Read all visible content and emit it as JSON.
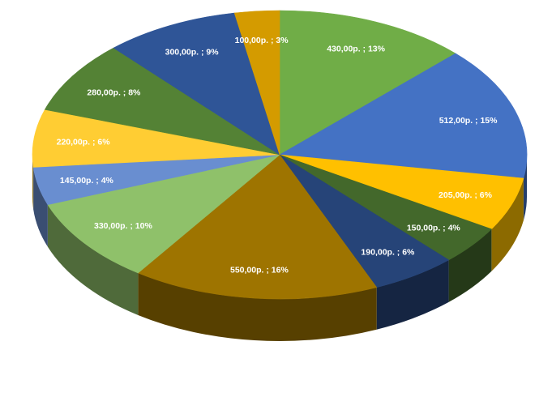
{
  "chart_data": {
    "type": "pie",
    "title": "",
    "values": [
      430,
      512,
      205,
      150,
      190,
      550,
      330,
      145,
      220,
      280,
      300,
      100
    ],
    "labels": [
      "430,00р. ; 13%",
      "512,00р. ; 15%",
      "205,00р. ; 6%",
      "150,00р. ; 4%",
      "190,00р. ; 6%",
      "550,00р. ; 16%",
      "330,00р. ; 10%",
      "145,00р. ; 4%",
      "220,00р. ; 6%",
      "280,00р. ; 8%",
      "300,00р. ; 9%",
      "100,00р. ; 3%"
    ],
    "colors": [
      "#70ad47",
      "#4472c4",
      "#ffc000",
      "#43682b",
      "#264478",
      "#9e7400",
      "#8fc16a",
      "#698ed0",
      "#ffcd33",
      "#548235",
      "#2f5597",
      "#d49b00"
    ],
    "start": "12 o'clock",
    "direction": "clockwise",
    "style": "3d-tilted",
    "legend": "none"
  }
}
